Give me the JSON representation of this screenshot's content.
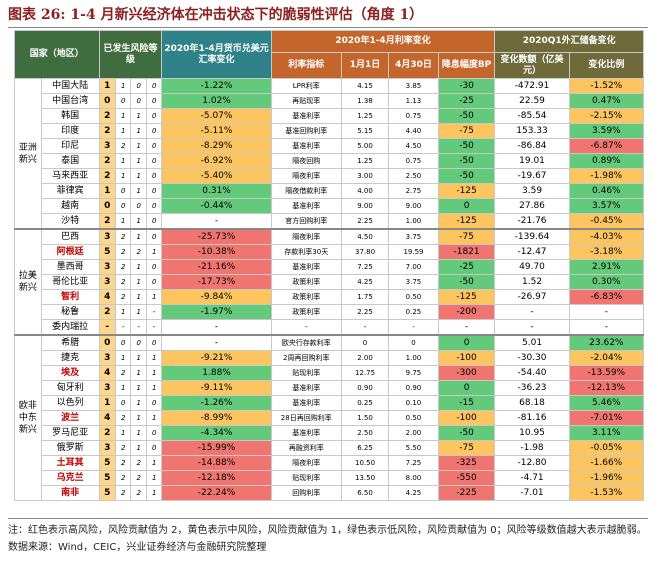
{
  "title": "图表 26: 1-4 月新兴经济体在冲击状态下的脆弱性评估（角度 1）",
  "table": {
    "headers": {
      "country": "国家（地区）",
      "level": "已发生风险等级",
      "currency": "2020年1-4月货币兑美元汇率变化",
      "rate": "2020年1-4月利率变化",
      "indicator": "利率指标",
      "jan1": "1月1日",
      "apr30": "4月30日",
      "bp": "降息幅度BP",
      "reserve": "2020Q1外汇储备变化",
      "amount": "变化数额（亿美元）",
      "ratio": "变化比例"
    },
    "groups": [
      {
        "name": "亚洲新兴",
        "rows": [
          {
            "country": "中国大陆",
            "level": "1",
            "scores": [
              "1",
              "0",
              "0"
            ],
            "currency": "-1.22%",
            "indicator": "LPR利率",
            "jan1": "4.15",
            "apr30": "3.85",
            "bp": "-30",
            "amount": "-472.91",
            "ratio": "-1.52%",
            "colors": [
              "green",
              "green",
              "yellow"
            ]
          },
          {
            "country": "中国台湾",
            "level": "0",
            "scores": [
              "0",
              "0",
              "0"
            ],
            "currency": "1.02%",
            "indicator": "再贴现率",
            "jan1": "1.38",
            "apr30": "1.13",
            "bp": "-25",
            "amount": "22.59",
            "ratio": "0.47%",
            "colors": [
              "green",
              "green",
              "green"
            ]
          },
          {
            "country": "韩国",
            "level": "2",
            "scores": [
              "1",
              "1",
              "0"
            ],
            "currency": "-5.07%",
            "indicator": "基准利率",
            "jan1": "1.25",
            "apr30": "0.75",
            "bp": "-50",
            "amount": "-85.54",
            "ratio": "-2.15%",
            "colors": [
              "yellow",
              "green",
              "yellow"
            ]
          },
          {
            "country": "印度",
            "level": "2",
            "scores": [
              "1",
              "1",
              "0"
            ],
            "currency": "-5.11%",
            "indicator": "基准回购利率",
            "jan1": "5.15",
            "apr30": "4.40",
            "bp": "-75",
            "amount": "153.33",
            "ratio": "3.59%",
            "colors": [
              "yellow",
              "yellow",
              "green"
            ]
          },
          {
            "country": "印尼",
            "level": "3",
            "scores": [
              "2",
              "1",
              "0"
            ],
            "currency": "-8.29%",
            "indicator": "基准利率",
            "jan1": "5.00",
            "apr30": "4.50",
            "bp": "-50",
            "amount": "-86.84",
            "ratio": "-6.87%",
            "colors": [
              "yellow",
              "green",
              "red"
            ]
          },
          {
            "country": "泰国",
            "level": "2",
            "scores": [
              "1",
              "1",
              "0"
            ],
            "currency": "-6.92%",
            "indicator": "隔夜回购",
            "jan1": "1.25",
            "apr30": "0.75",
            "bp": "-50",
            "amount": "19.01",
            "ratio": "0.89%",
            "colors": [
              "yellow",
              "green",
              "green"
            ]
          },
          {
            "country": "马来西亚",
            "level": "2",
            "scores": [
              "1",
              "1",
              "0"
            ],
            "currency": "-5.40%",
            "indicator": "隔夜利率",
            "jan1": "3.00",
            "apr30": "2.50",
            "bp": "-50",
            "amount": "-19.67",
            "ratio": "-1.98%",
            "colors": [
              "yellow",
              "green",
              "yellow"
            ]
          },
          {
            "country": "菲律宾",
            "level": "1",
            "scores": [
              "0",
              "1",
              "0"
            ],
            "currency": "0.31%",
            "indicator": "隔夜借款利率",
            "jan1": "4.00",
            "apr30": "2.75",
            "bp": "-125",
            "amount": "3.59",
            "ratio": "0.46%",
            "colors": [
              "green",
              "yellow",
              "green"
            ]
          },
          {
            "country": "越南",
            "level": "0",
            "scores": [
              "0",
              "0",
              "0"
            ],
            "currency": "-0.44%",
            "indicator": "基准利率",
            "jan1": "9.00",
            "apr30": "9.00",
            "bp": "0",
            "amount": "27.86",
            "ratio": "3.57%",
            "colors": [
              "green",
              "green",
              "green"
            ]
          },
          {
            "country": "沙特",
            "level": "2",
            "scores": [
              "1",
              "1",
              "0"
            ],
            "currency": "-",
            "indicator": "官方回购利率",
            "jan1": "2.25",
            "apr30": "1.00",
            "bp": "-125",
            "amount": "-21.76",
            "ratio": "-0.45%",
            "colors": [
              "white",
              "yellow",
              "yellow"
            ]
          }
        ]
      },
      {
        "name": "拉美新兴",
        "rows": [
          {
            "country": "巴西",
            "level": "3",
            "scores": [
              "2",
              "1",
              "0"
            ],
            "currency": "-25.73%",
            "indicator": "隔夜利率",
            "jan1": "4.50",
            "apr30": "3.75",
            "bp": "-75",
            "amount": "-139.64",
            "ratio": "-4.03%",
            "colors": [
              "red",
              "yellow",
              "yellow"
            ]
          },
          {
            "country": "阿根廷",
            "level": "5",
            "scores": [
              "2",
              "2",
              "1"
            ],
            "currency": "-10.38%",
            "indicator": "存款利率30天",
            "jan1": "37.80",
            "apr30": "19.59",
            "bp": "-1821",
            "amount": "-12.47",
            "ratio": "-3.18%",
            "colors": [
              "red",
              "red",
              "yellow"
            ],
            "name_color": "#c00000"
          },
          {
            "country": "墨西哥",
            "level": "3",
            "scores": [
              "2",
              "1",
              "0"
            ],
            "currency": "-21.16%",
            "indicator": "基准利率",
            "jan1": "7.25",
            "apr30": "7.00",
            "bp": "-25",
            "amount": "49.70",
            "ratio": "2.91%",
            "colors": [
              "red",
              "green",
              "green"
            ]
          },
          {
            "country": "哥伦比亚",
            "level": "3",
            "scores": [
              "2",
              "1",
              "0"
            ],
            "currency": "-17.73%",
            "indicator": "政策利率",
            "jan1": "4.25",
            "apr30": "3.75",
            "bp": "-50",
            "amount": "1.52",
            "ratio": "0.30%",
            "colors": [
              "red",
              "green",
              "green"
            ]
          },
          {
            "country": "智利",
            "level": "4",
            "scores": [
              "2",
              "1",
              "1"
            ],
            "currency": "-9.84%",
            "indicator": "政策利率",
            "jan1": "1.75",
            "apr30": "0.50",
            "bp": "-125",
            "amount": "-26.97",
            "ratio": "-6.83%",
            "colors": [
              "yellow",
              "yellow",
              "red"
            ],
            "name_color": "#c00000"
          },
          {
            "country": "秘鲁",
            "level": "2",
            "scores": [
              "1",
              "1",
              "-"
            ],
            "currency": "-1.97%",
            "indicator": "政策利率",
            "jan1": "2.25",
            "apr30": "0.25",
            "bp": "-200",
            "amount": "-",
            "ratio": "-",
            "colors": [
              "green",
              "red",
              "white"
            ]
          },
          {
            "country": "委内瑞拉",
            "level": "-",
            "scores": [
              "-",
              "-",
              "-"
            ],
            "currency": "-",
            "indicator": "-",
            "jan1": "-",
            "apr30": "-",
            "bp": "-",
            "amount": "-",
            "ratio": "-",
            "colors": [
              "white",
              "white",
              "white"
            ]
          }
        ]
      },
      {
        "name": "欧非中东新兴",
        "rows": [
          {
            "country": "希腊",
            "level": "0",
            "scores": [
              "0",
              "0",
              "0"
            ],
            "currency": "-",
            "indicator": "欧央行存款利率",
            "jan1": "0",
            "apr30": "0",
            "bp": "0",
            "amount": "5.01",
            "ratio": "23.62%",
            "colors": [
              "white",
              "green",
              "green"
            ]
          },
          {
            "country": "捷克",
            "level": "3",
            "scores": [
              "1",
              "1",
              "1"
            ],
            "currency": "-9.21%",
            "indicator": "2周再回购利率",
            "jan1": "2.00",
            "apr30": "1.00",
            "bp": "-100",
            "amount": "-30.30",
            "ratio": "-2.04%",
            "colors": [
              "yellow",
              "yellow",
              "yellow"
            ]
          },
          {
            "country": "埃及",
            "level": "4",
            "scores": [
              "2",
              "1",
              "1"
            ],
            "currency": "1.88%",
            "indicator": "贴现利率",
            "jan1": "12.75",
            "apr30": "9.75",
            "bp": "-300",
            "amount": "-54.40",
            "ratio": "-13.59%",
            "colors": [
              "green",
              "red",
              "red"
            ],
            "name_color": "#c00000"
          },
          {
            "country": "匈牙利",
            "level": "3",
            "scores": [
              "1",
              "1",
              "1"
            ],
            "currency": "-9.11%",
            "indicator": "基准利率",
            "jan1": "0.90",
            "apr30": "0.90",
            "bp": "0",
            "amount": "-36.23",
            "ratio": "-12.13%",
            "colors": [
              "yellow",
              "green",
              "red"
            ]
          },
          {
            "country": "以色列",
            "level": "1",
            "scores": [
              "0",
              "1",
              "0"
            ],
            "currency": "-1.26%",
            "indicator": "基准利率",
            "jan1": "0.25",
            "apr30": "0.10",
            "bp": "-15",
            "amount": "68.18",
            "ratio": "5.46%",
            "colors": [
              "green",
              "green",
              "green"
            ]
          },
          {
            "country": "波兰",
            "level": "4",
            "scores": [
              "2",
              "1",
              "1"
            ],
            "currency": "-8.99%",
            "indicator": "28日再回购利率",
            "jan1": "1.50",
            "apr30": "0.50",
            "bp": "-100",
            "amount": "-81.16",
            "ratio": "-7.01%",
            "colors": [
              "yellow",
              "yellow",
              "red"
            ],
            "name_color": "#c00000"
          },
          {
            "country": "罗马尼亚",
            "level": "2",
            "scores": [
              "1",
              "1",
              "0"
            ],
            "currency": "-4.34%",
            "indicator": "基准利率",
            "jan1": "2.50",
            "apr30": "2.00",
            "bp": "-50",
            "amount": "10.95",
            "ratio": "3.11%",
            "colors": [
              "green",
              "green",
              "green"
            ]
          },
          {
            "country": "俄罗斯",
            "level": "3",
            "scores": [
              "2",
              "1",
              "0"
            ],
            "currency": "-15.99%",
            "indicator": "再融资利率",
            "jan1": "6.25",
            "apr30": "5.50",
            "bp": "-75",
            "amount": "-1.98",
            "ratio": "-0.05%",
            "colors": [
              "red",
              "yellow",
              "yellow"
            ]
          },
          {
            "country": "土耳其",
            "level": "5",
            "scores": [
              "2",
              "2",
              "1"
            ],
            "currency": "-14.88%",
            "indicator": "隔夜利率",
            "jan1": "10.50",
            "apr30": "7.25",
            "bp": "-325",
            "amount": "-12.80",
            "ratio": "-1.66%",
            "colors": [
              "red",
              "red",
              "yellow"
            ],
            "name_color": "#c00000"
          },
          {
            "country": "乌克兰",
            "level": "5",
            "scores": [
              "2",
              "2",
              "1"
            ],
            "currency": "-12.18%",
            "indicator": "贴现利率",
            "jan1": "13.50",
            "apr30": "8.00",
            "bp": "-550",
            "amount": "-4.71",
            "ratio": "-1.96%",
            "colors": [
              "red",
              "red",
              "yellow"
            ],
            "name_color": "#c00000"
          },
          {
            "country": "南非",
            "level": "5",
            "scores": [
              "2",
              "2",
              "1"
            ],
            "currency": "-22.24%",
            "indicator": "回购利率",
            "jan1": "6.50",
            "apr30": "4.25",
            "bp": "-225",
            "amount": "-7.01",
            "ratio": "-1.53%",
            "colors": [
              "red",
              "red",
              "yellow"
            ],
            "name_color": "#c00000"
          }
        ]
      }
    ]
  },
  "notes": [
    "注：红色表示高风险，风险贡献值为 2，黄色表示中风险，风险贡献值为 1，绿色表示低风险，风险贡献值为 0；风险等级数值越大表示越脆弱。",
    "数据来源：Wind，CEIC，兴业证券经济与金融研究院整理"
  ]
}
